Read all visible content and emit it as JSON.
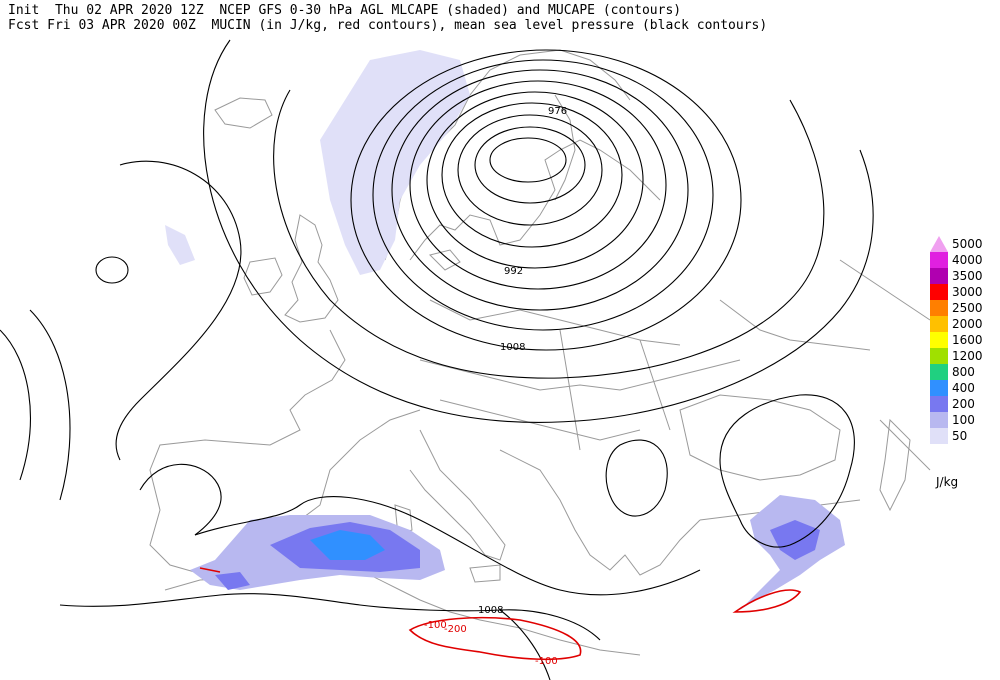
{
  "header": {
    "line1": "Init  Thu 02 APR 2020 12Z  NCEP GFS 0-30 hPa AGL MLCAPE (shaded) and MUCAPE (contours)",
    "line2": "Fcst Fri 03 APR 2020 00Z  MUCIN (in J/kg, red contours), mean sea level pressure (black contours)"
  },
  "legend": {
    "units": "J/kg",
    "levels": [
      {
        "label": "5000",
        "color": "#f0a0f0"
      },
      {
        "label": "4000",
        "color": "#e020e0"
      },
      {
        "label": "3500",
        "color": "#b000b0"
      },
      {
        "label": "3000",
        "color": "#ff0000"
      },
      {
        "label": "2500",
        "color": "#ff7f00"
      },
      {
        "label": "2000",
        "color": "#ffc000"
      },
      {
        "label": "1600",
        "color": "#ffff00"
      },
      {
        "label": "1200",
        "color": "#a0e000"
      },
      {
        "label": "800",
        "color": "#20d080"
      },
      {
        "label": "400",
        "color": "#3090ff"
      },
      {
        "label": "200",
        "color": "#7878f0"
      },
      {
        "label": "100",
        "color": "#b8b8f0"
      },
      {
        "label": "50",
        "color": "#e0e0f8"
      }
    ]
  },
  "pressure_labels": {
    "p976": "976",
    "p992": "992",
    "p1008_north": "1008",
    "p1008_south": "1008"
  },
  "cin_labels": {
    "c100a": "-100",
    "c200": "-200",
    "c100b": "-100"
  },
  "colors": {
    "isobar": "#000000",
    "cin": "#e00000",
    "coast": "#9a9a9a"
  }
}
